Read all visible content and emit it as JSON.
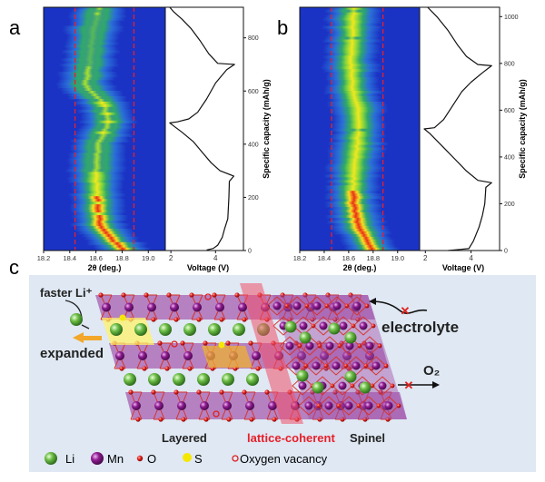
{
  "panel_labels": {
    "a": "a",
    "b": "b",
    "c": "c"
  },
  "colors": {
    "heatmap_bg": "#1b33c4",
    "dash": "#e8202a",
    "mn": "#8a1a8e",
    "li": "#5fae3a",
    "o": "#e0201c",
    "s": "#f5e800",
    "coherent_band": "#f0506a",
    "background_c": "#dde8f4"
  },
  "chart_data": [
    {
      "panel": "a",
      "type": "heatmap",
      "xlabel": "2θ (deg.)",
      "x_ticks": [
        "18.2",
        "18.4",
        "18.6",
        "18.8",
        "19.0"
      ],
      "xlim": [
        18.2,
        19.13
      ],
      "dashed_lines_2theta": [
        18.44,
        18.89
      ],
      "ylim": [
        0,
        915
      ],
      "peak_trace": {
        "capacity": [
          0,
          50,
          100,
          200,
          300,
          400,
          480,
          550,
          620,
          700,
          800,
          915
        ],
        "two_theta": [
          18.82,
          18.7,
          18.63,
          18.61,
          18.6,
          18.62,
          18.7,
          18.66,
          18.52,
          18.55,
          18.57,
          18.63
        ],
        "intensity": [
          1,
          1,
          1,
          0.95,
          0.6,
          0.55,
          0.7,
          0.65,
          0.5,
          0.45,
          0.35,
          0.45
        ]
      },
      "voltage_profile": {
        "type": "line",
        "xlabel": "Voltage (V)",
        "x_ticks": [
          "2",
          "4"
        ],
        "xlim": [
          1.75,
          5.25
        ],
        "ylabel": "Specific capacity (mAh/g)",
        "y_ticks": [
          "0",
          "200",
          "400",
          "600",
          "800"
        ],
        "ylim": [
          0,
          915
        ],
        "voltage": [
          3.6,
          3.9,
          4.1,
          4.3,
          4.4,
          4.55,
          4.6,
          4.62,
          4.82,
          4.2,
          3.8,
          3.4,
          3.0,
          2.5,
          2.1,
          1.95,
          2.3,
          2.8,
          3.2,
          3.6,
          4.0,
          4.5,
          4.85,
          4.1,
          3.7,
          3.3,
          2.9,
          2.5,
          2.1,
          1.95
        ],
        "capacity": [
          2,
          8,
          20,
          50,
          80,
          120,
          200,
          260,
          280,
          300,
          330,
          370,
          410,
          445,
          470,
          480,
          484,
          495,
          520,
          570,
          630,
          680,
          700,
          704,
          740,
          790,
          835,
          870,
          900,
          915
        ]
      }
    },
    {
      "panel": "b",
      "type": "heatmap",
      "xlabel": "2θ (deg.)",
      "x_ticks": [
        "18.2",
        "18.4",
        "18.6",
        "18.8",
        "19.0"
      ],
      "xlim": [
        18.2,
        19.18
      ],
      "dashed_lines_2theta": [
        18.46,
        18.88
      ],
      "ylim": [
        0,
        1040
      ],
      "peak_trace": {
        "capacity": [
          0,
          100,
          200,
          300,
          400,
          500,
          600,
          700,
          800,
          900,
          1040
        ],
        "two_theta": [
          18.8,
          18.68,
          18.64,
          18.64,
          18.66,
          18.68,
          18.68,
          18.63,
          18.62,
          18.63,
          18.64
        ],
        "intensity": [
          1,
          1,
          1,
          0.8,
          0.7,
          0.72,
          0.7,
          0.72,
          0.75,
          0.7,
          0.7
        ]
      },
      "voltage_profile": {
        "type": "line",
        "xlabel": "Voltage (V)",
        "x_ticks": [
          "2",
          "4"
        ],
        "xlim": [
          1.75,
          5.25
        ],
        "ylabel": "Specific capacity (mAh/g)",
        "y_ticks": [
          "0",
          "200",
          "400",
          "600",
          "800",
          "1000"
        ],
        "ylim": [
          0,
          1040
        ],
        "voltage": [
          3.0,
          3.9,
          4.1,
          4.35,
          4.5,
          4.6,
          4.65,
          4.9,
          4.3,
          3.8,
          3.3,
          2.8,
          2.2,
          1.95,
          2.4,
          2.8,
          3.2,
          3.6,
          4.0,
          4.5,
          4.9,
          4.3,
          3.8,
          3.4,
          3.0,
          2.5,
          2.1
        ],
        "capacity": [
          0,
          8,
          40,
          100,
          150,
          200,
          270,
          290,
          300,
          340,
          390,
          440,
          500,
          520,
          525,
          560,
          620,
          680,
          720,
          760,
          790,
          795,
          830,
          880,
          940,
          1000,
          1040
        ]
      }
    }
  ],
  "schematic": {
    "faster_li": "faster Li⁺",
    "expanded": "expanded",
    "electrolyte": "electrolyte",
    "o2": "O₂",
    "layered": "Layered",
    "lattice_coherent": "lattice-coherent",
    "spinel": "Spinel",
    "legend": [
      {
        "symbol": "li",
        "label": "Li"
      },
      {
        "symbol": "mn",
        "label": "Mn"
      },
      {
        "symbol": "o",
        "label": "O"
      },
      {
        "symbol": "s",
        "label": "S"
      },
      {
        "symbol": "vacancy",
        "label": "Oxygen vacancy"
      }
    ]
  }
}
